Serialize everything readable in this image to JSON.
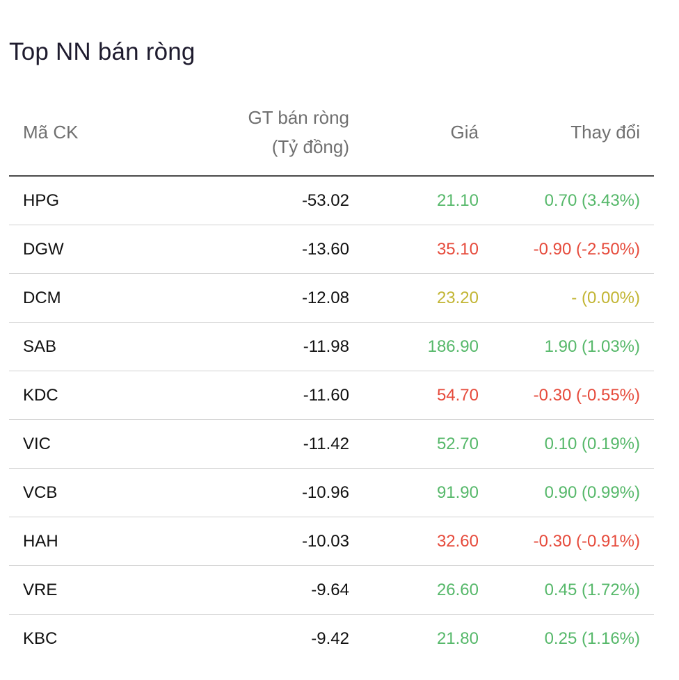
{
  "title": "Top NN bán ròng",
  "colors": {
    "up": "#56b86a",
    "down": "#e64b3c",
    "reference": "#c2b533"
  },
  "headers": {
    "code": "Mã CK",
    "value_line1": "GT bán ròng",
    "value_line2": "(Tỷ đồng)",
    "price": "Giá",
    "change": "Thay đổi"
  },
  "rows": [
    {
      "code": "HPG",
      "value": "-53.02",
      "price": "21.10",
      "change": "0.70 (3.43%)",
      "trend": "up"
    },
    {
      "code": "DGW",
      "value": "-13.60",
      "price": "35.10",
      "change": "-0.90 (-2.50%)",
      "trend": "down"
    },
    {
      "code": "DCM",
      "value": "-12.08",
      "price": "23.20",
      "change": "- (0.00%)",
      "trend": "ref"
    },
    {
      "code": "SAB",
      "value": "-11.98",
      "price": "186.90",
      "change": "1.90 (1.03%)",
      "trend": "up"
    },
    {
      "code": "KDC",
      "value": "-11.60",
      "price": "54.70",
      "change": "-0.30 (-0.55%)",
      "trend": "down"
    },
    {
      "code": "VIC",
      "value": "-11.42",
      "price": "52.70",
      "change": "0.10 (0.19%)",
      "trend": "up"
    },
    {
      "code": "VCB",
      "value": "-10.96",
      "price": "91.90",
      "change": "0.90 (0.99%)",
      "trend": "up"
    },
    {
      "code": "HAH",
      "value": "-10.03",
      "price": "32.60",
      "change": "-0.30 (-0.91%)",
      "trend": "down"
    },
    {
      "code": "VRE",
      "value": "-9.64",
      "price": "26.60",
      "change": "0.45 (1.72%)",
      "trend": "up"
    },
    {
      "code": "KBC",
      "value": "-9.42",
      "price": "21.80",
      "change": "0.25 (1.16%)",
      "trend": "up"
    }
  ]
}
